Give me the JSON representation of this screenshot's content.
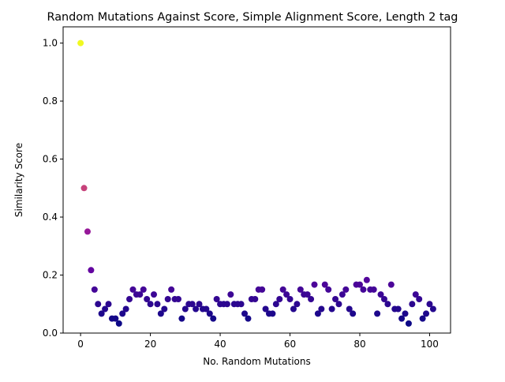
{
  "chart_data": {
    "type": "scatter",
    "title": "Random Mutations Against Score, Simple Alignment Score, Length 2 tag",
    "xlabel": "No. Random Mutations",
    "ylabel": "Similarity Score",
    "xlim": [
      -5,
      106
    ],
    "ylim": [
      0,
      1.056
    ],
    "xticks": [
      0,
      20,
      40,
      60,
      80,
      100
    ],
    "xtick_labels": [
      "0",
      "20",
      "40",
      "60",
      "80",
      "100"
    ],
    "yticks": [
      0.0,
      0.2,
      0.4,
      0.6,
      0.8,
      1.0
    ],
    "ytick_labels": [
      "0.0",
      "0.2",
      "0.4",
      "0.6",
      "0.8",
      "1.0"
    ],
    "grid": false,
    "legend": "none",
    "colormap": "plasma",
    "color_encodes": "y",
    "x": [
      0,
      1,
      2,
      3,
      4,
      5,
      6,
      7,
      8,
      9,
      10,
      11,
      12,
      13,
      14,
      15,
      16,
      17,
      18,
      19,
      20,
      21,
      22,
      23,
      24,
      25,
      26,
      27,
      28,
      29,
      30,
      31,
      32,
      33,
      34,
      35,
      36,
      37,
      38,
      39,
      40,
      41,
      42,
      43,
      44,
      45,
      46,
      47,
      48,
      49,
      50,
      51,
      52,
      53,
      54,
      55,
      56,
      57,
      58,
      59,
      60,
      61,
      62,
      63,
      64,
      65,
      66,
      67,
      68,
      69,
      70,
      71,
      72,
      73,
      74,
      75,
      76,
      77,
      78,
      79,
      80,
      81,
      82,
      83,
      84,
      85,
      86,
      87,
      88,
      89,
      90,
      91,
      92,
      93,
      94,
      95,
      96,
      97,
      98,
      99,
      100,
      101
    ],
    "y": [
      1.0,
      0.5,
      0.35,
      0.217,
      0.15,
      0.1,
      0.067,
      0.083,
      0.1,
      0.05,
      0.05,
      0.033,
      0.067,
      0.083,
      0.117,
      0.15,
      0.133,
      0.133,
      0.15,
      0.117,
      0.1,
      0.133,
      0.1,
      0.067,
      0.083,
      0.117,
      0.15,
      0.117,
      0.117,
      0.05,
      0.083,
      0.1,
      0.1,
      0.083,
      0.1,
      0.083,
      0.083,
      0.067,
      0.05,
      0.117,
      0.1,
      0.1,
      0.1,
      0.133,
      0.1,
      0.1,
      0.1,
      0.067,
      0.05,
      0.117,
      0.117,
      0.15,
      0.15,
      0.083,
      0.067,
      0.067,
      0.1,
      0.117,
      0.15,
      0.133,
      0.117,
      0.083,
      0.1,
      0.15,
      0.133,
      0.133,
      0.117,
      0.167,
      0.067,
      0.083,
      0.167,
      0.15,
      0.083,
      0.117,
      0.1,
      0.133,
      0.15,
      0.083,
      0.067,
      0.167,
      0.167,
      0.15,
      0.183,
      0.15,
      0.15,
      0.067,
      0.133,
      0.117,
      0.1,
      0.167,
      0.083,
      0.083,
      0.05,
      0.067,
      0.033,
      0.1,
      0.133,
      0.117,
      0.05,
      0.067,
      0.1,
      0.083
    ]
  }
}
